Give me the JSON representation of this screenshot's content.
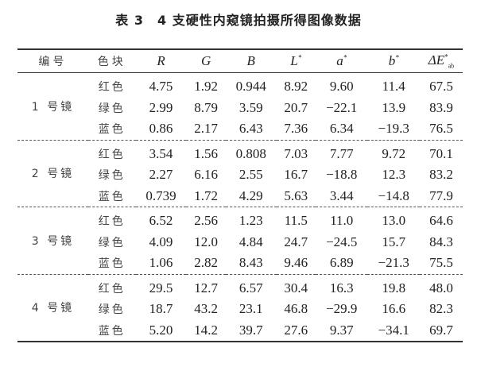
{
  "title": "表 3　4 支硬性内窥镜拍摄所得图像数据",
  "headers": [
    "编号",
    "色块",
    "R",
    "G",
    "B",
    "L",
    "a",
    "b",
    "ΔE"
  ],
  "header_sup": "*",
  "header_sub": "ab",
  "groups": [
    {
      "name": "1 号镜",
      "rows": [
        [
          "红色",
          "4.75",
          "1.92",
          "0.944",
          "8.92",
          "9.60",
          "11.4",
          "67.5"
        ],
        [
          "绿色",
          "2.99",
          "8.79",
          "3.59",
          "20.7",
          "−22.1",
          "13.9",
          "83.9"
        ],
        [
          "蓝色",
          "0.86",
          "2.17",
          "6.43",
          "7.36",
          "6.34",
          "−19.3",
          "76.5"
        ]
      ]
    },
    {
      "name": "2 号镜",
      "rows": [
        [
          "红色",
          "3.54",
          "1.56",
          "0.808",
          "7.03",
          "7.77",
          "9.72",
          "70.1"
        ],
        [
          "绿色",
          "2.27",
          "6.16",
          "2.55",
          "16.7",
          "−18.8",
          "12.3",
          "83.2"
        ],
        [
          "蓝色",
          "0.739",
          "1.72",
          "4.29",
          "5.63",
          "3.44",
          "−14.8",
          "77.9"
        ]
      ]
    },
    {
      "name": "3 号镜",
      "rows": [
        [
          "红色",
          "6.52",
          "2.56",
          "1.23",
          "11.5",
          "11.0",
          "13.0",
          "64.6"
        ],
        [
          "绿色",
          "4.09",
          "12.0",
          "4.84",
          "24.7",
          "−24.5",
          "15.7",
          "84.3"
        ],
        [
          "蓝色",
          "1.06",
          "2.82",
          "8.43",
          "9.46",
          "6.89",
          "−21.3",
          "75.5"
        ]
      ]
    },
    {
      "name": "4 号镜",
      "rows": [
        [
          "红色",
          "29.5",
          "12.7",
          "6.57",
          "30.4",
          "16.3",
          "19.8",
          "48.0"
        ],
        [
          "绿色",
          "18.7",
          "43.2",
          "23.1",
          "46.8",
          "−29.9",
          "16.6",
          "82.3"
        ],
        [
          "蓝色",
          "5.20",
          "14.2",
          "39.7",
          "27.6",
          "9.37",
          "−34.1",
          "69.7"
        ]
      ]
    }
  ]
}
